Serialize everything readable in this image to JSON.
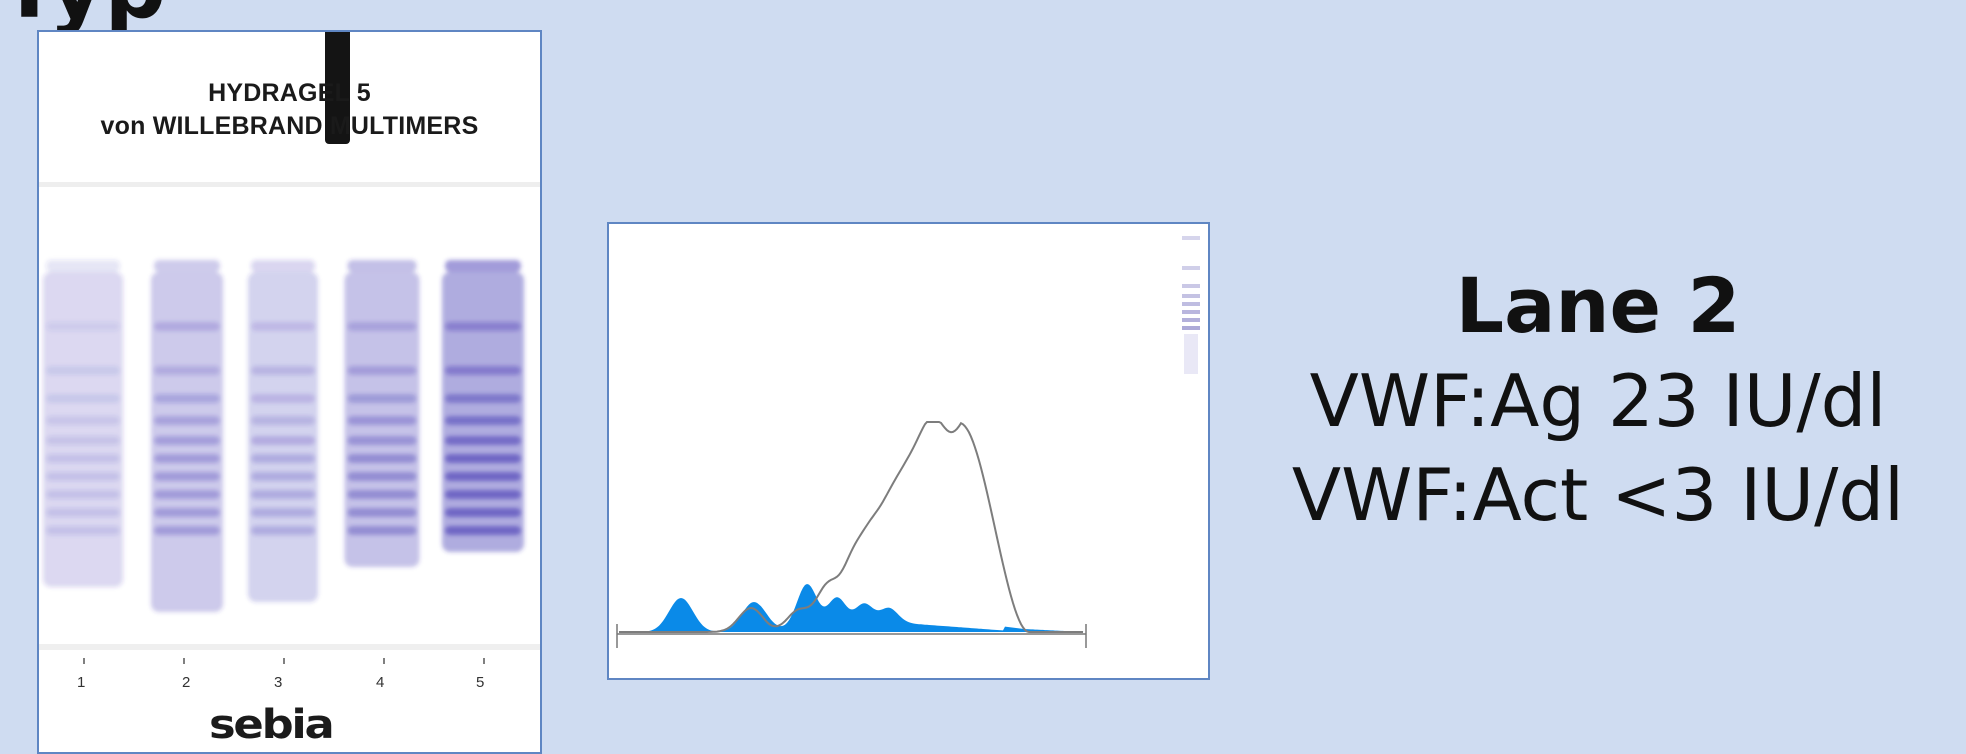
{
  "slide": {
    "title_fragment": "Typ",
    "gel": {
      "header_line1": "HYDRAGEL 5",
      "header_line2": "von WILLEBRAND MULTIMERS",
      "lanes": [
        "1",
        "2",
        "3",
        "4",
        "5"
      ],
      "brand": "sebia"
    },
    "densitometry": {
      "fill_color": "#0a8ae8",
      "line_color": "#7d7d7d"
    },
    "result": {
      "lane_label": "Lane 2",
      "lines": [
        "VWF:Ag 23 IU/dl",
        "VWF:Act <3 IU/dl"
      ]
    },
    "colors": {
      "background": "#cfdcf1",
      "panel_border": "#5f86c3",
      "gel_stain": "#3a2fb0"
    }
  }
}
